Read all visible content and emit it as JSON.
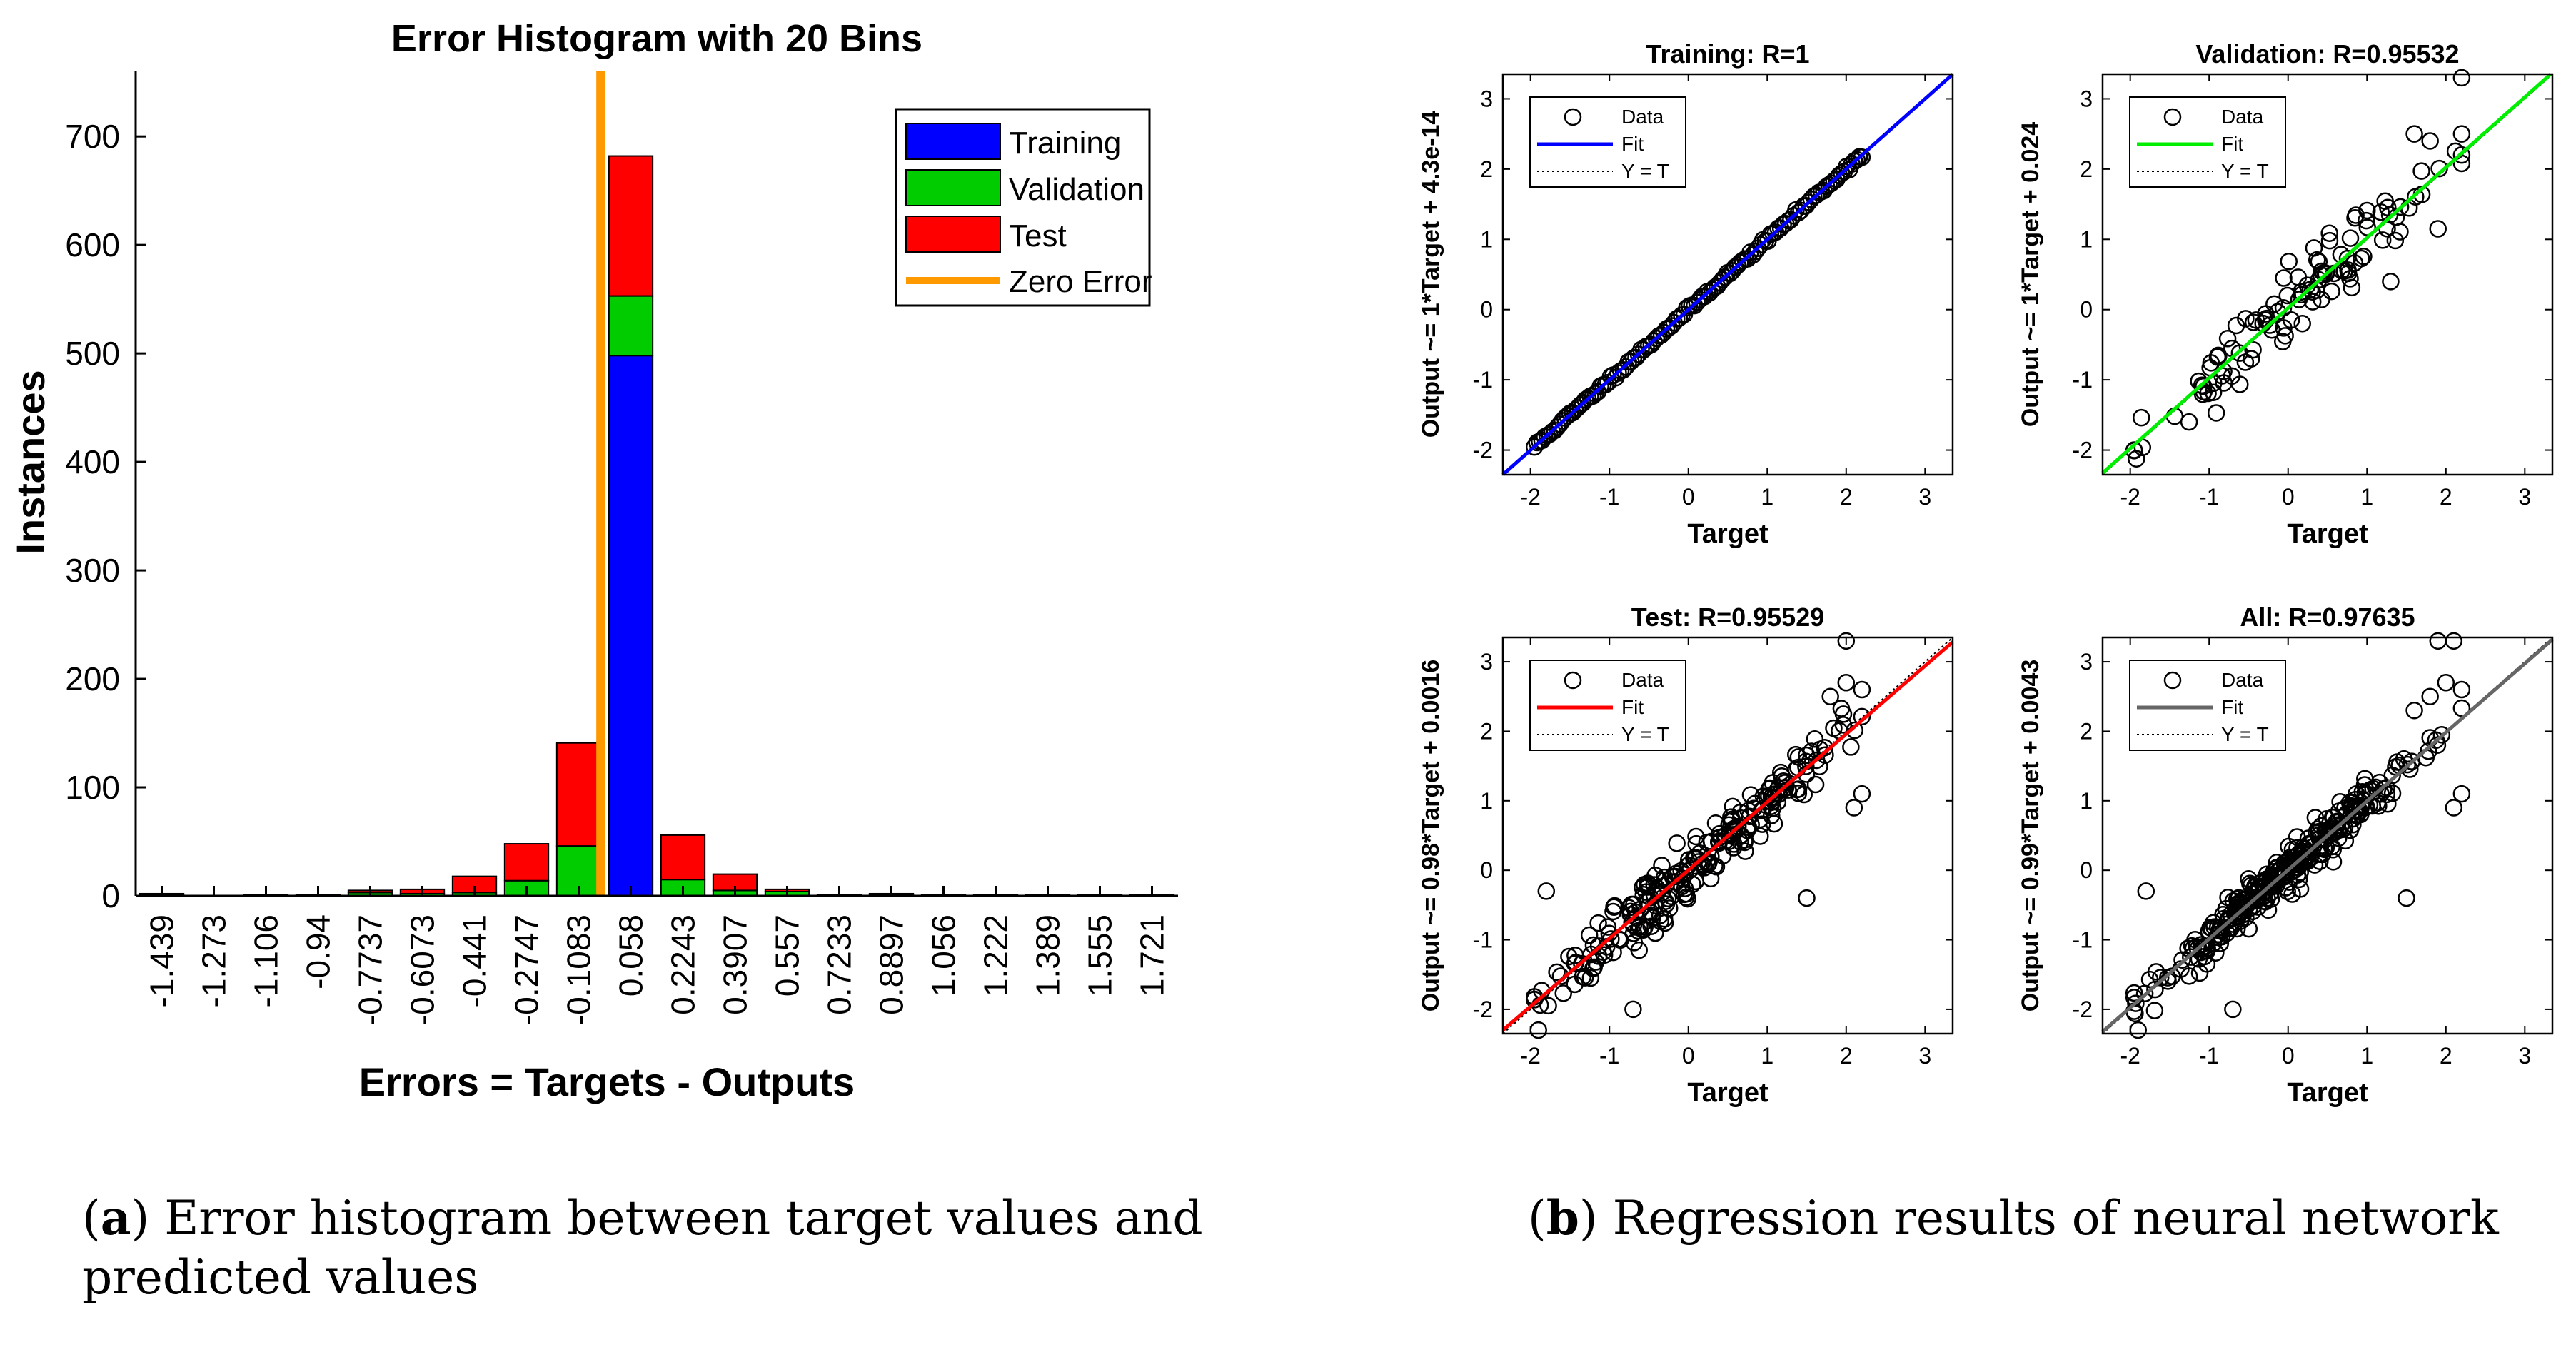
{
  "chart_data": [
    {
      "type": "bar",
      "stacked": true,
      "title": "Error Histogram with 20 Bins",
      "xlabel": "Errors = Targets - Outputs",
      "ylabel": "Instances",
      "ylim": [
        0,
        760
      ],
      "yticks": [
        0,
        100,
        200,
        300,
        400,
        500,
        600,
        700
      ],
      "categories": [
        "-1.439",
        "-1.273",
        "-1.106",
        "-0.94",
        "-0.7737",
        "-0.6073",
        "-0.441",
        "-0.2747",
        "-0.1083",
        "0.058",
        "0.2243",
        "0.3907",
        "0.557",
        "0.7233",
        "0.8897",
        "1.056",
        "1.222",
        "1.389",
        "1.555",
        "1.721"
      ],
      "series": [
        {
          "name": "Training",
          "color": "#0000ff",
          "values": [
            0,
            0,
            0,
            0,
            0,
            0,
            0,
            0,
            0,
            498,
            0,
            0,
            0,
            0,
            0,
            0,
            0,
            0,
            0,
            0
          ]
        },
        {
          "name": "Validation",
          "color": "#00cc00",
          "values": [
            1,
            0,
            1,
            0,
            3,
            2,
            3,
            14,
            46,
            55,
            15,
            5,
            4,
            1,
            1,
            0,
            0,
            0,
            0,
            0
          ]
        },
        {
          "name": "Test",
          "color": "#ff0000",
          "values": [
            1,
            0,
            0,
            1,
            2,
            4,
            15,
            34,
            95,
            129,
            41,
            15,
            2,
            0,
            1,
            1,
            1,
            1,
            1,
            1
          ]
        }
      ],
      "zero_error": {
        "name": "Zero Error",
        "color": "#ff9900",
        "x_bin": 8.92
      },
      "legend": "top-right",
      "caption": {
        "label": "a",
        "text": "Error histogram between target values and predicted values"
      }
    },
    {
      "type": "scatter",
      "title": "Training: R=1",
      "xlabel": "Target",
      "ylabel": "Output ~= 1*Target + 4.3e-14",
      "xlim": [
        -2.35,
        3.35
      ],
      "ylim": [
        -2.35,
        3.35
      ],
      "ticks": [
        -2,
        -1,
        0,
        1,
        2,
        3
      ],
      "fit_color": "#0000ff",
      "fit": {
        "slope": 1,
        "intercept": 0
      },
      "legend_labels": [
        "Data",
        "Fit",
        "Y = T"
      ],
      "points": {
        "mode": "diagonal",
        "n": 130,
        "noise": 0.02,
        "xmin": -1.95,
        "xmax": 2.2,
        "seed": 11
      }
    },
    {
      "type": "scatter",
      "title": "Validation: R=0.95532",
      "xlabel": "Target",
      "ylabel": "Output ~= 1*Target + 0.024",
      "xlim": [
        -2.35,
        3.35
      ],
      "ylim": [
        -2.35,
        3.35
      ],
      "ticks": [
        -2,
        -1,
        0,
        1,
        2,
        3
      ],
      "fit_color": "#00ee00",
      "fit": {
        "slope": 1,
        "intercept": 0.024
      },
      "legend_labels": [
        "Data",
        "Fit",
        "Y = T"
      ],
      "points": {
        "mode": "noisy",
        "n": 110,
        "noise": 0.22,
        "xmin": -1.95,
        "xmax": 2.2,
        "seed": 23
      },
      "extra_points": [
        [
          2.2,
          3.3
        ],
        [
          1.6,
          2.5
        ],
        [
          2.2,
          2.5
        ],
        [
          2.2,
          2.2
        ],
        [
          1.9,
          1.15
        ],
        [
          1.8,
          2.4
        ],
        [
          -1.95,
          -2.0
        ],
        [
          1.3,
          0.4
        ]
      ]
    },
    {
      "type": "scatter",
      "title": "Test: R=0.95529",
      "xlabel": "Target",
      "ylabel": "Output ~= 0.98*Target + 0.0016",
      "xlim": [
        -2.35,
        3.35
      ],
      "ylim": [
        -2.35,
        3.35
      ],
      "ticks": [
        -2,
        -1,
        0,
        1,
        2,
        3
      ],
      "fit_color": "#ff0000",
      "fit": {
        "slope": 0.98,
        "intercept": 0.0016
      },
      "legend_labels": [
        "Data",
        "Fit",
        "Y = T"
      ],
      "points": {
        "mode": "noisy",
        "n": 230,
        "noise": 0.22,
        "xmin": -1.95,
        "xmax": 2.2,
        "seed": 37
      },
      "extra_points": [
        [
          2.0,
          3.3
        ],
        [
          1.8,
          2.5
        ],
        [
          2.0,
          2.7
        ],
        [
          2.2,
          2.6
        ],
        [
          -1.8,
          -0.3
        ],
        [
          1.5,
          -0.4
        ],
        [
          -0.7,
          -2.0
        ],
        [
          -1.9,
          -2.3
        ],
        [
          2.1,
          0.9
        ],
        [
          2.2,
          1.1
        ]
      ]
    },
    {
      "type": "scatter",
      "title": "All: R=0.97635",
      "xlabel": "Target",
      "ylabel": "Output ~= 0.99*Target + 0.0043",
      "xlim": [
        -2.35,
        3.35
      ],
      "ylim": [
        -2.35,
        3.35
      ],
      "ticks": [
        -2,
        -1,
        0,
        1,
        2,
        3
      ],
      "fit_color": "#666666",
      "fit": {
        "slope": 0.99,
        "intercept": 0.0043
      },
      "legend_labels": [
        "Data",
        "Fit",
        "Y = T"
      ],
      "points": {
        "mode": "noisy",
        "n": 320,
        "noise": 0.15,
        "xmin": -1.95,
        "xmax": 2.2,
        "seed": 53
      },
      "extra_points": [
        [
          1.9,
          3.3
        ],
        [
          2.1,
          3.3
        ],
        [
          2.0,
          2.7
        ],
        [
          1.8,
          2.5
        ],
        [
          2.2,
          2.6
        ],
        [
          -1.8,
          -0.3
        ],
        [
          1.5,
          -0.4
        ],
        [
          -0.7,
          -2.0
        ],
        [
          -1.9,
          -2.3
        ],
        [
          2.1,
          0.9
        ],
        [
          2.2,
          1.1
        ],
        [
          1.6,
          2.3
        ]
      ]
    }
  ],
  "caption_b": {
    "label": "b",
    "text": "Regression results of neural network"
  }
}
